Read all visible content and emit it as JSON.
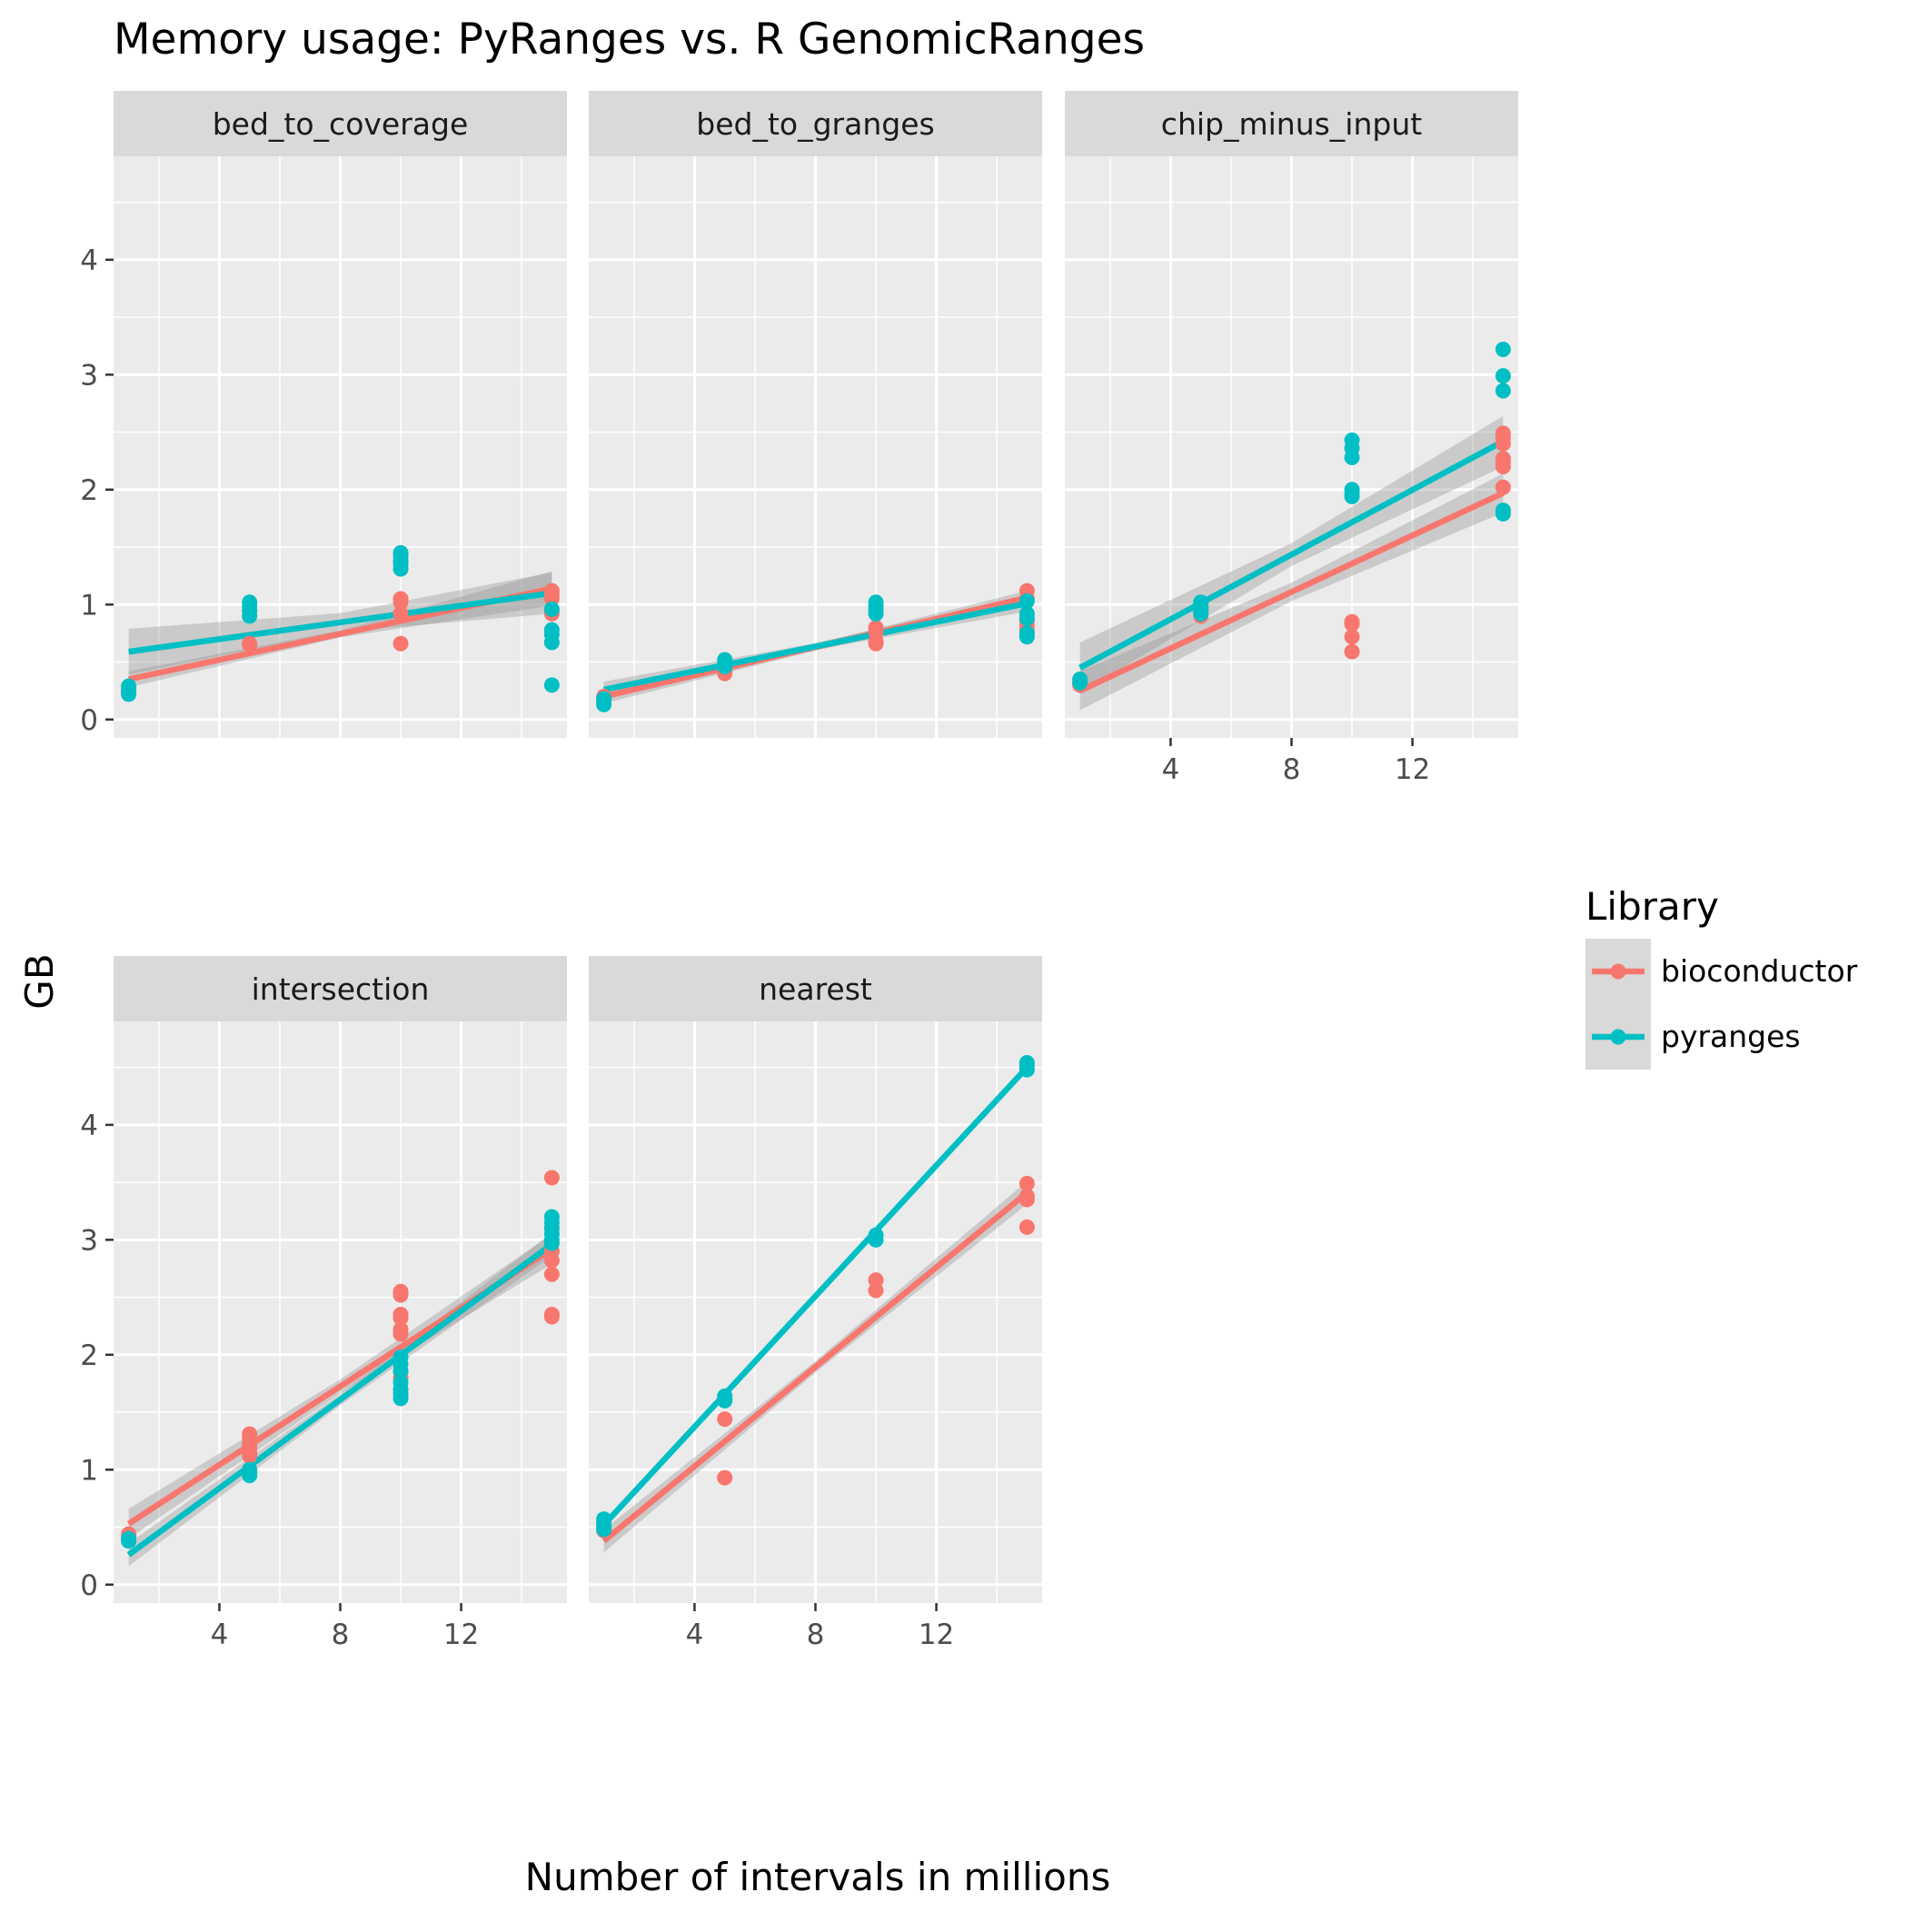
{
  "chart_data": {
    "type": "scatter",
    "title": "Memory usage: PyRanges vs. R GenomicRanges",
    "xlabel": "Number of intervals in millions",
    "ylabel": "GB",
    "xlim": [
      0.5,
      15.5
    ],
    "ylim": [
      -0.16,
      4.9
    ],
    "x_ticks": [
      4,
      8,
      12
    ],
    "y_ticks": [
      0,
      1,
      2,
      3,
      4
    ],
    "grid": true,
    "legend": {
      "title": "Library",
      "position": "right",
      "entries": [
        {
          "name": "bioconductor",
          "color": "#F8766D"
        },
        {
          "name": "pyranges",
          "color": "#00BFC4"
        }
      ]
    },
    "colors": {
      "bioconductor": "#F8766D",
      "pyranges": "#00BFC4",
      "panel_background": "#EBEBEB",
      "strip_background": "#D9D9D9",
      "confidence_band": "#999999"
    },
    "panels": [
      {
        "name": "bed_to_coverage",
        "series": [
          {
            "name": "bioconductor",
            "points": [
              [
                1,
                0.26
              ],
              [
                1,
                0.24
              ],
              [
                5,
                0.65
              ],
              [
                5,
                0.66
              ],
              [
                10,
                1.05
              ],
              [
                10,
                1.02
              ],
              [
                10,
                0.92
              ],
              [
                10,
                0.66
              ],
              [
                15,
                1.12
              ],
              [
                15,
                1.08
              ],
              [
                15,
                1.05
              ],
              [
                15,
                0.95
              ],
              [
                15,
                0.92
              ]
            ],
            "fit": [
              [
                1,
                0.35
              ],
              [
                15,
                1.14
              ]
            ],
            "band_width": [
              0.07,
              0.03,
              0.15
            ]
          },
          {
            "name": "pyranges",
            "points": [
              [
                1,
                0.29
              ],
              [
                1,
                0.25
              ],
              [
                1,
                0.22
              ],
              [
                5,
                1.02
              ],
              [
                5,
                0.98
              ],
              [
                5,
                0.95
              ],
              [
                5,
                0.9
              ],
              [
                10,
                1.45
              ],
              [
                10,
                1.42
              ],
              [
                10,
                1.38
              ],
              [
                10,
                1.35
              ],
              [
                10,
                1.31
              ],
              [
                15,
                0.96
              ],
              [
                15,
                0.78
              ],
              [
                15,
                0.74
              ],
              [
                15,
                0.67
              ],
              [
                15,
                0.3
              ]
            ],
            "fit": [
              [
                1,
                0.59
              ],
              [
                15,
                1.1
              ]
            ],
            "band_width": [
              0.2,
              0.08,
              0.18
            ]
          }
        ]
      },
      {
        "name": "bed_to_granges",
        "series": [
          {
            "name": "bioconductor",
            "points": [
              [
                1,
                0.2
              ],
              [
                1,
                0.17
              ],
              [
                5,
                0.45
              ],
              [
                5,
                0.42
              ],
              [
                5,
                0.4
              ],
              [
                10,
                0.8
              ],
              [
                10,
                0.76
              ],
              [
                10,
                0.68
              ],
              [
                10,
                0.66
              ],
              [
                15,
                1.12
              ],
              [
                15,
                1.05
              ],
              [
                15,
                0.86
              ],
              [
                15,
                0.82
              ],
              [
                15,
                0.78
              ]
            ],
            "fit": [
              [
                1,
                0.2
              ],
              [
                15,
                1.06
              ]
            ],
            "band_width": [
              0.06,
              0.03,
              0.06
            ]
          },
          {
            "name": "pyranges",
            "points": [
              [
                1,
                0.18
              ],
              [
                1,
                0.15
              ],
              [
                1,
                0.13
              ],
              [
                5,
                0.52
              ],
              [
                5,
                0.49
              ],
              [
                5,
                0.46
              ],
              [
                10,
                1.02
              ],
              [
                10,
                0.98
              ],
              [
                10,
                0.95
              ],
              [
                10,
                0.92
              ],
              [
                15,
                1.03
              ],
              [
                15,
                0.92
              ],
              [
                15,
                0.88
              ],
              [
                15,
                0.75
              ],
              [
                15,
                0.72
              ]
            ],
            "fit": [
              [
                1,
                0.26
              ],
              [
                15,
                1.01
              ]
            ],
            "band_width": [
              0.07,
              0.03,
              0.07
            ]
          }
        ]
      },
      {
        "name": "chip_minus_input",
        "series": [
          {
            "name": "bioconductor",
            "points": [
              [
                1,
                0.32
              ],
              [
                1,
                0.3
              ],
              [
                5,
                0.95
              ],
              [
                5,
                0.9
              ],
              [
                10,
                0.85
              ],
              [
                10,
                0.83
              ],
              [
                10,
                0.72
              ],
              [
                10,
                0.59
              ],
              [
                15,
                2.49
              ],
              [
                15,
                2.45
              ],
              [
                15,
                2.4
              ],
              [
                15,
                2.27
              ],
              [
                15,
                2.24
              ],
              [
                15,
                2.2
              ],
              [
                15,
                2.02
              ]
            ],
            "fit": [
              [
                1,
                0.25
              ],
              [
                15,
                1.97
              ]
            ],
            "band_width": [
              0.17,
              0.08,
              0.17
            ]
          },
          {
            "name": "pyranges",
            "points": [
              [
                1,
                0.35
              ],
              [
                1,
                0.32
              ],
              [
                5,
                1.02
              ],
              [
                5,
                0.98
              ],
              [
                5,
                0.95
              ],
              [
                5,
                0.92
              ],
              [
                10,
                2.43
              ],
              [
                10,
                2.36
              ],
              [
                10,
                2.28
              ],
              [
                10,
                2.0
              ],
              [
                10,
                1.96
              ],
              [
                10,
                1.94
              ],
              [
                15,
                3.22
              ],
              [
                15,
                2.99
              ],
              [
                15,
                2.86
              ],
              [
                15,
                1.82
              ],
              [
                15,
                1.79
              ]
            ],
            "fit": [
              [
                1,
                0.45
              ],
              [
                15,
                2.42
              ]
            ],
            "band_width": [
              0.22,
              0.1,
              0.22
            ]
          }
        ]
      },
      {
        "name": "intersection",
        "series": [
          {
            "name": "bioconductor",
            "points": [
              [
                1,
                0.44
              ],
              [
                1,
                0.42
              ],
              [
                5,
                1.31
              ],
              [
                5,
                1.27
              ],
              [
                5,
                1.22
              ],
              [
                5,
                1.18
              ],
              [
                5,
                1.14
              ],
              [
                5,
                1.12
              ],
              [
                10,
                2.55
              ],
              [
                10,
                2.52
              ],
              [
                10,
                2.35
              ],
              [
                10,
                2.32
              ],
              [
                10,
                2.22
              ],
              [
                10,
                2.18
              ],
              [
                10,
                1.85
              ],
              [
                10,
                1.8
              ],
              [
                15,
                3.54
              ],
              [
                15,
                2.9
              ],
              [
                15,
                2.82
              ],
              [
                15,
                2.7
              ],
              [
                15,
                2.35
              ],
              [
                15,
                2.33
              ]
            ],
            "fit": [
              [
                1,
                0.53
              ],
              [
                15,
                2.92
              ]
            ],
            "band_width": [
              0.13,
              0.06,
              0.13
            ]
          },
          {
            "name": "pyranges",
            "points": [
              [
                1,
                0.4
              ],
              [
                1,
                0.38
              ],
              [
                5,
                1.0
              ],
              [
                5,
                0.97
              ],
              [
                5,
                0.95
              ],
              [
                10,
                1.98
              ],
              [
                10,
                1.92
              ],
              [
                10,
                1.86
              ],
              [
                10,
                1.76
              ],
              [
                10,
                1.7
              ],
              [
                10,
                1.66
              ],
              [
                10,
                1.62
              ],
              [
                15,
                3.2
              ],
              [
                15,
                3.15
              ],
              [
                15,
                3.1
              ],
              [
                15,
                3.05
              ],
              [
                15,
                3.0
              ],
              [
                15,
                2.97
              ]
            ],
            "fit": [
              [
                1,
                0.26
              ],
              [
                15,
                2.96
              ]
            ],
            "band_width": [
              0.1,
              0.05,
              0.1
            ]
          }
        ]
      },
      {
        "name": "nearest",
        "series": [
          {
            "name": "bioconductor",
            "points": [
              [
                1,
                0.5
              ],
              [
                1,
                0.47
              ],
              [
                5,
                1.44
              ],
              [
                5,
                0.93
              ],
              [
                10,
                2.65
              ],
              [
                10,
                2.56
              ],
              [
                15,
                3.49
              ],
              [
                15,
                3.38
              ],
              [
                15,
                3.35
              ],
              [
                15,
                3.11
              ]
            ],
            "fit": [
              [
                1,
                0.38
              ],
              [
                15,
                3.41
              ]
            ],
            "band_width": [
              0.1,
              0.05,
              0.1
            ]
          },
          {
            "name": "pyranges",
            "points": [
              [
                1,
                0.57
              ],
              [
                1,
                0.54
              ],
              [
                1,
                0.51
              ],
              [
                1,
                0.48
              ],
              [
                5,
                1.64
              ],
              [
                5,
                1.62
              ],
              [
                5,
                1.6
              ],
              [
                10,
                3.04
              ],
              [
                10,
                3.0
              ],
              [
                15,
                4.54
              ],
              [
                15,
                4.52
              ],
              [
                15,
                4.48
              ]
            ],
            "fit": [
              [
                1,
                0.52
              ],
              [
                15,
                4.5
              ]
            ],
            "band_width": [
              0.02,
              0.01,
              0.02
            ]
          }
        ]
      }
    ]
  }
}
